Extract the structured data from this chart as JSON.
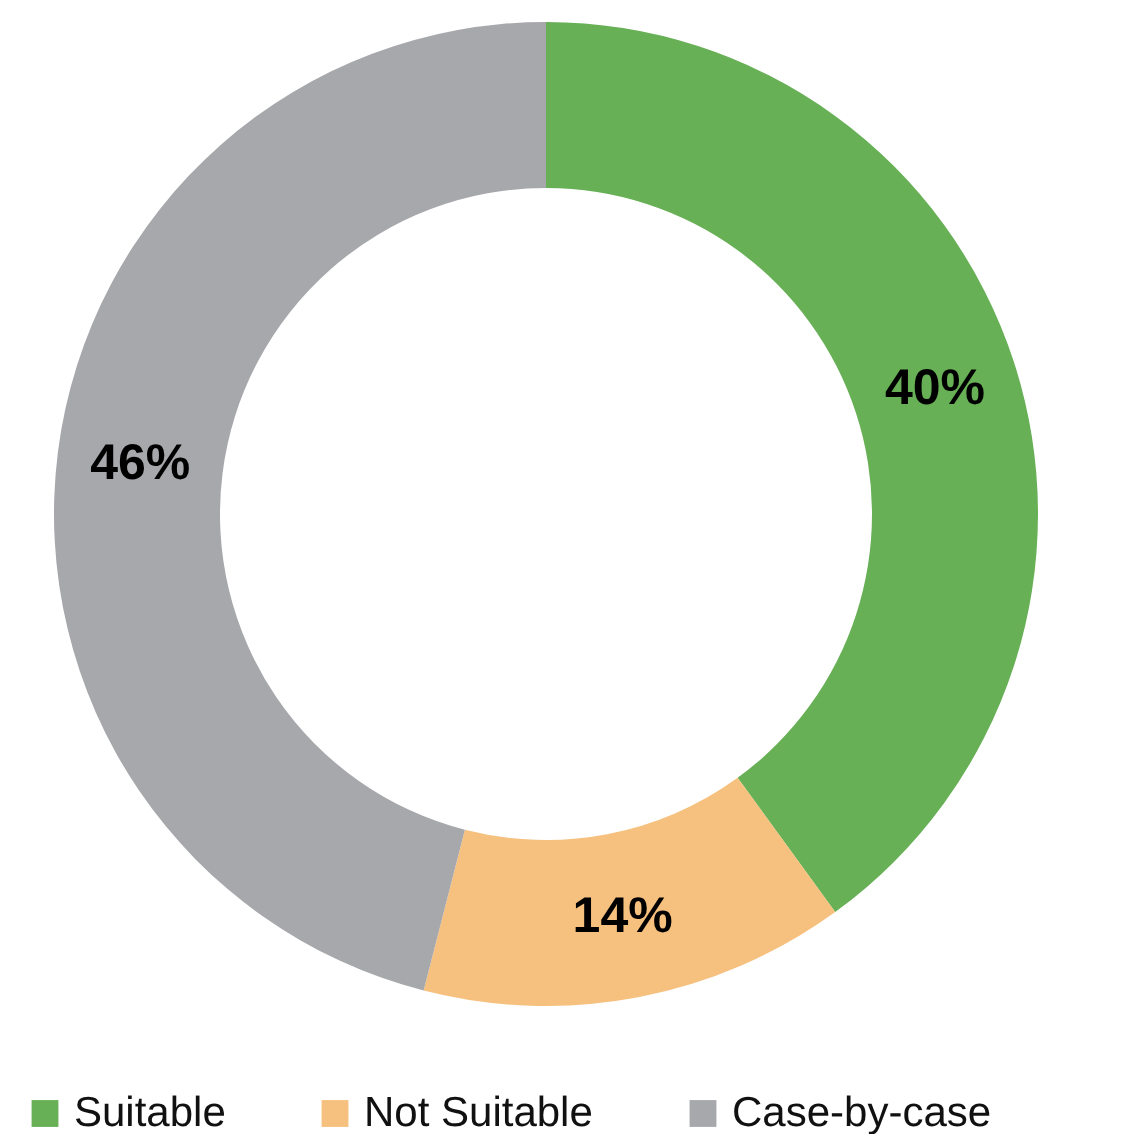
{
  "chart_data": {
    "type": "donut",
    "categories": [
      "Suitable",
      "Not Suitable",
      "Case-by-case"
    ],
    "values": [
      40,
      14,
      46
    ],
    "colors": [
      "#67b056",
      "#f6c17e",
      "#a7a8ac"
    ],
    "value_labels": [
      "40%",
      "14%",
      "46%"
    ],
    "legend": "bottom"
  }
}
